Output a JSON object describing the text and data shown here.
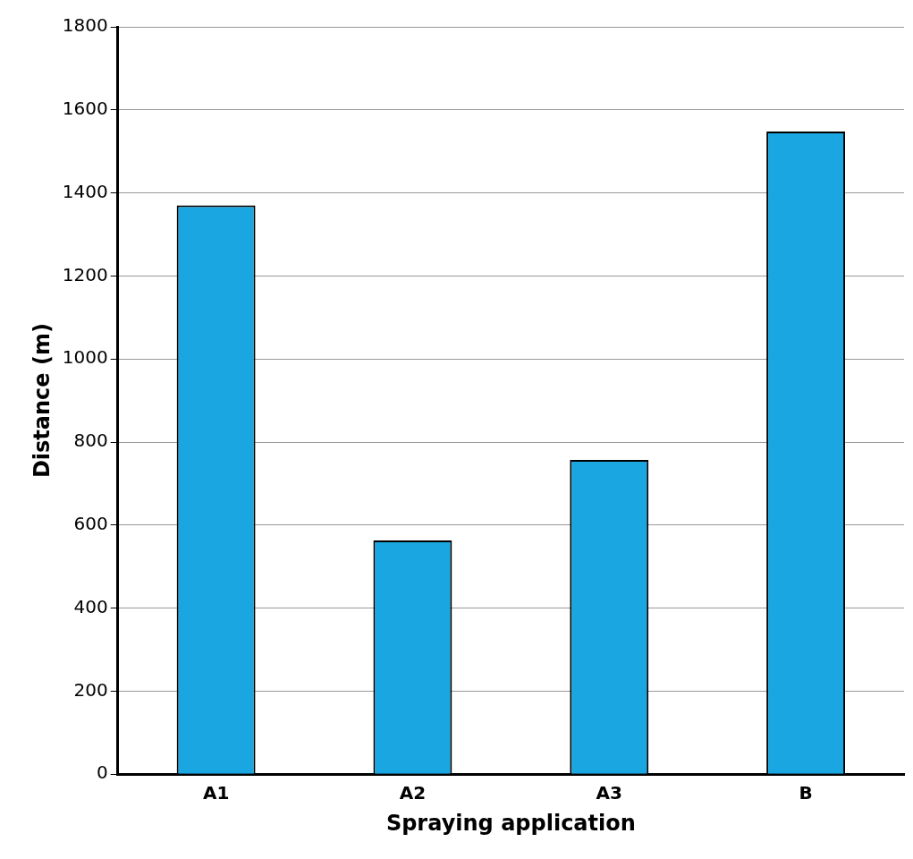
{
  "chart_data": {
    "type": "bar",
    "xlabel": "Spraying application",
    "ylabel": "Distance (m)",
    "categories": [
      "A1",
      "A2",
      "A3",
      "B"
    ],
    "values": [
      1370,
      563,
      757,
      1548
    ],
    "color": "#1aa6e0",
    "ylim": [
      0,
      1800
    ],
    "yticks": [
      0,
      200,
      400,
      600,
      800,
      1000,
      1200,
      1400,
      1600,
      1800
    ],
    "grid": "y"
  }
}
